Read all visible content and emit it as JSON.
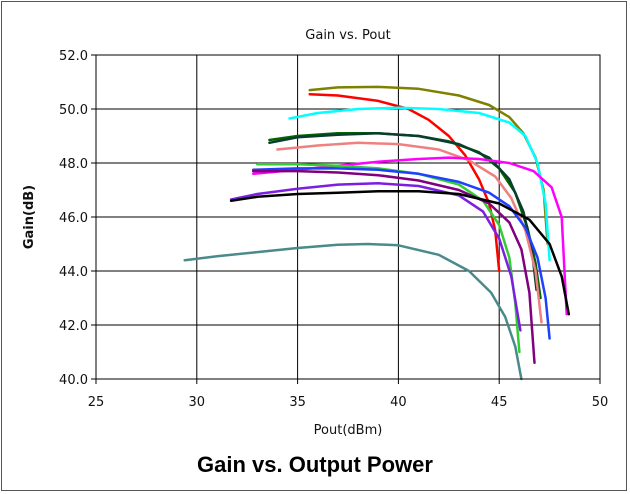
{
  "caption": "Gain vs. Output Power",
  "chart_data": {
    "type": "line",
    "title": "Gain vs. Pout",
    "xlabel": "Pout(dBm)",
    "ylabel": "Gain(dB)",
    "xlim": [
      25,
      50
    ],
    "ylim": [
      40,
      52
    ],
    "xticks": [
      25,
      30,
      35,
      40,
      45,
      50
    ],
    "yticks": [
      40,
      42,
      44,
      46,
      48,
      50,
      52
    ],
    "xtick_labels": [
      "25",
      "30",
      "35",
      "40",
      "45",
      "50"
    ],
    "ytick_labels": [
      "40.0",
      "42.0",
      "44.0",
      "46.0",
      "48.0",
      "50.0",
      "52.0"
    ],
    "grid": true,
    "series": [
      {
        "color": "#808000",
        "x": [
          35.6,
          37,
          39,
          41,
          43,
          44.5,
          45.5,
          46.2,
          46.8,
          47.2,
          47.4
        ],
        "y": [
          50.7,
          50.8,
          50.82,
          50.75,
          50.5,
          50.15,
          49.7,
          49.1,
          48.2,
          47.0,
          45.0
        ]
      },
      {
        "color": "#ff0000",
        "x": [
          35.6,
          37,
          39,
          40.5,
          41.5,
          42.5,
          43.3,
          44,
          44.5,
          44.8,
          45.0
        ],
        "y": [
          50.55,
          50.5,
          50.3,
          50.0,
          49.6,
          49.0,
          48.3,
          47.4,
          46.5,
          45.5,
          44.0
        ]
      },
      {
        "color": "#00ffff",
        "x": [
          34.6,
          36,
          38,
          40,
          42,
          44,
          45.5,
          46.3,
          46.9,
          47.3,
          47.5
        ],
        "y": [
          49.65,
          49.85,
          50.0,
          50.05,
          50.0,
          49.85,
          49.5,
          49.0,
          48.0,
          46.5,
          44.4
        ]
      },
      {
        "color": "#006400",
        "x": [
          33.6,
          35,
          37,
          39,
          41,
          42.5,
          44,
          45,
          45.8,
          46.4,
          46.8,
          47.05
        ],
        "y": [
          48.85,
          49.0,
          49.1,
          49.1,
          49.0,
          48.8,
          48.4,
          47.8,
          46.9,
          45.6,
          44.3,
          43.0
        ]
      },
      {
        "color": "#0b3d2e",
        "x": [
          33.6,
          35,
          37,
          39,
          41,
          43,
          44.5,
          45.5,
          46.2,
          46.6,
          46.85
        ],
        "y": [
          48.75,
          48.95,
          49.05,
          49.1,
          49.0,
          48.7,
          48.2,
          47.4,
          46.2,
          44.9,
          43.3
        ]
      },
      {
        "color": "#f08080",
        "x": [
          34.0,
          36,
          38,
          40,
          42,
          43.5,
          44.8,
          45.6,
          46.3,
          46.8,
          47.1
        ],
        "y": [
          48.5,
          48.65,
          48.75,
          48.7,
          48.5,
          48.1,
          47.5,
          46.7,
          45.5,
          44.0,
          42.1
        ]
      },
      {
        "color": "#ff00ff",
        "x": [
          32.8,
          35,
          37,
          39,
          41,
          42.5,
          44,
          45.5,
          46.7,
          47.6,
          48.1,
          48.35
        ],
        "y": [
          47.6,
          47.75,
          47.9,
          48.05,
          48.15,
          48.2,
          48.15,
          48.0,
          47.7,
          47.1,
          46.0,
          42.4
        ]
      },
      {
        "color": "#32cd32",
        "x": [
          33.0,
          35,
          37,
          39,
          41,
          43,
          44.2,
          45.0,
          45.5,
          45.8,
          46.0
        ],
        "y": [
          47.95,
          47.95,
          47.9,
          47.8,
          47.6,
          47.2,
          46.6,
          45.7,
          44.5,
          42.8,
          41.0
        ]
      },
      {
        "color": "#1e40ff",
        "x": [
          32.8,
          35,
          37,
          39,
          41,
          43,
          44.5,
          45.5,
          46.3,
          46.9,
          47.3,
          47.5
        ],
        "y": [
          47.75,
          47.8,
          47.8,
          47.75,
          47.6,
          47.3,
          46.9,
          46.4,
          45.6,
          44.5,
          43.0,
          41.5
        ]
      },
      {
        "color": "#800080",
        "x": [
          32.8,
          35,
          37,
          39,
          41,
          43,
          44.5,
          45.5,
          46.1,
          46.5,
          46.75
        ],
        "y": [
          47.7,
          47.7,
          47.65,
          47.55,
          47.35,
          47.0,
          46.5,
          45.8,
          44.8,
          43.2,
          40.6
        ]
      },
      {
        "color": "#7b1fe0",
        "x": [
          31.7,
          33,
          35,
          37,
          39,
          41,
          43,
          44.2,
          45.0,
          45.6,
          46.05
        ],
        "y": [
          46.65,
          46.85,
          47.05,
          47.2,
          47.25,
          47.15,
          46.8,
          46.2,
          45.2,
          43.8,
          41.8
        ]
      },
      {
        "color": "#000000",
        "x": [
          31.7,
          33,
          35,
          37,
          39,
          41,
          43,
          45,
          46.5,
          47.5,
          48.1,
          48.45
        ],
        "y": [
          46.6,
          46.75,
          46.85,
          46.9,
          46.95,
          46.95,
          46.85,
          46.5,
          45.9,
          45.0,
          43.8,
          42.4
        ]
      },
      {
        "color": "#4a8a8a",
        "x": [
          29.4,
          31,
          33,
          35,
          37,
          38.5,
          40,
          42,
          43.5,
          44.6,
          45.3,
          45.8,
          46.1
        ],
        "y": [
          44.4,
          44.55,
          44.7,
          44.85,
          44.97,
          45.0,
          44.95,
          44.6,
          44.0,
          43.2,
          42.3,
          41.2,
          40.0
        ]
      }
    ]
  }
}
